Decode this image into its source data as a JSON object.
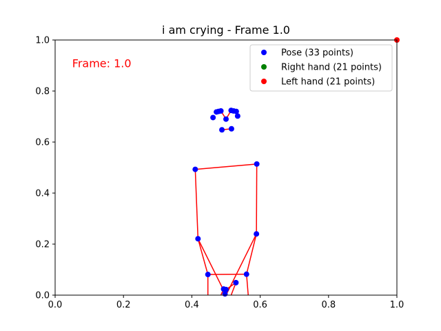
{
  "chart_data": {
    "type": "scatter",
    "title": "i am crying - Frame 1.0",
    "xlabel": "",
    "ylabel": "",
    "xlim": [
      0.0,
      1.0
    ],
    "ylim": [
      0.0,
      1.0
    ],
    "xticks": [
      "0.0",
      "0.2",
      "0.4",
      "0.6",
      "0.8",
      "1.0"
    ],
    "yticks": [
      "0.0",
      "0.2",
      "0.4",
      "0.6",
      "0.8",
      "1.0"
    ],
    "grid": false,
    "legend_position": "top-right",
    "annotation": {
      "text": "Frame: 1.0",
      "x": 0.05,
      "y": 0.91,
      "color": "#ff0000"
    },
    "series": [
      {
        "name": "Pose (33 points)",
        "color": "#0000ff",
        "points": [
          [
            0.5,
            0.69
          ],
          [
            0.485,
            0.722
          ],
          [
            0.478,
            0.72
          ],
          [
            0.472,
            0.718
          ],
          [
            0.515,
            0.724
          ],
          [
            0.522,
            0.722
          ],
          [
            0.53,
            0.72
          ],
          [
            0.462,
            0.696
          ],
          [
            0.534,
            0.702
          ],
          [
            0.488,
            0.648
          ],
          [
            0.516,
            0.652
          ],
          [
            0.41,
            0.493
          ],
          [
            0.59,
            0.514
          ],
          [
            0.418,
            0.221
          ],
          [
            0.589,
            0.24
          ],
          [
            0.447,
            0.081
          ],
          [
            0.56,
            0.082
          ],
          [
            0.493,
            0.024
          ],
          [
            0.529,
            0.049
          ],
          [
            0.5,
            0.022
          ],
          [
            0.497,
            0.005
          ]
        ]
      },
      {
        "name": "Right hand (21 points)",
        "color": "#008000",
        "points": []
      },
      {
        "name": "Left hand (21 points)",
        "color": "#ff0000",
        "points": [
          [
            1.0,
            1.0
          ]
        ]
      }
    ],
    "connections": {
      "color": "#ff0000",
      "segments": [
        [
          [
            0.472,
            0.718
          ],
          [
            0.478,
            0.72
          ]
        ],
        [
          [
            0.478,
            0.72
          ],
          [
            0.485,
            0.722
          ]
        ],
        [
          [
            0.485,
            0.722
          ],
          [
            0.5,
            0.69
          ]
        ],
        [
          [
            0.5,
            0.69
          ],
          [
            0.515,
            0.724
          ]
        ],
        [
          [
            0.515,
            0.724
          ],
          [
            0.522,
            0.722
          ]
        ],
        [
          [
            0.522,
            0.722
          ],
          [
            0.53,
            0.72
          ]
        ],
        [
          [
            0.488,
            0.648
          ],
          [
            0.516,
            0.652
          ]
        ],
        [
          [
            0.41,
            0.493
          ],
          [
            0.59,
            0.514
          ]
        ],
        [
          [
            0.41,
            0.493
          ],
          [
            0.418,
            0.221
          ]
        ],
        [
          [
            0.418,
            0.221
          ],
          [
            0.447,
            0.081
          ]
        ],
        [
          [
            0.418,
            0.221
          ],
          [
            0.5,
            0.0
          ]
        ],
        [
          [
            0.59,
            0.514
          ],
          [
            0.589,
            0.24
          ]
        ],
        [
          [
            0.589,
            0.24
          ],
          [
            0.56,
            0.082
          ]
        ],
        [
          [
            0.589,
            0.24
          ],
          [
            0.5,
            0.0
          ]
        ],
        [
          [
            0.447,
            0.081
          ],
          [
            0.56,
            0.082
          ]
        ],
        [
          [
            0.447,
            0.081
          ],
          [
            0.447,
            0.0
          ]
        ],
        [
          [
            0.56,
            0.082
          ],
          [
            0.565,
            0.0
          ]
        ],
        [
          [
            0.493,
            0.024
          ],
          [
            0.5,
            0.022
          ]
        ],
        [
          [
            0.5,
            0.022
          ],
          [
            0.529,
            0.049
          ]
        ],
        [
          [
            0.529,
            0.049
          ],
          [
            0.515,
            0.0
          ]
        ],
        [
          [
            0.493,
            0.024
          ],
          [
            0.485,
            0.0
          ]
        ]
      ]
    }
  }
}
